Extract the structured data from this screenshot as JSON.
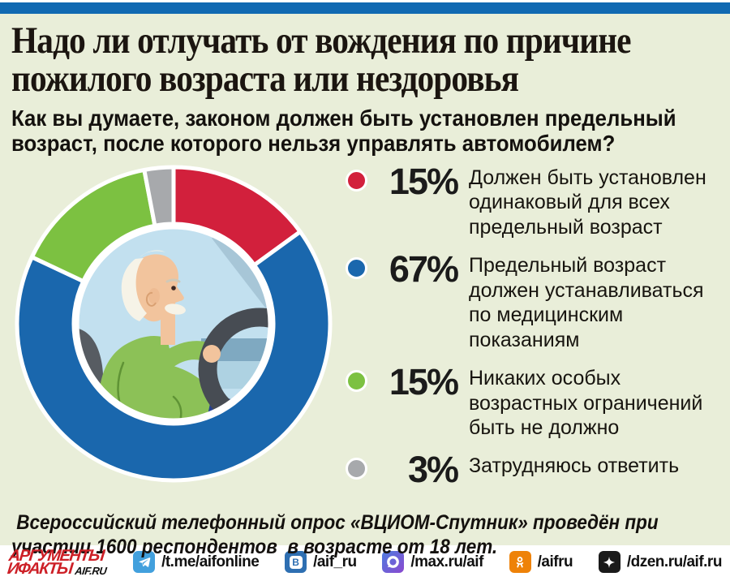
{
  "colors": {
    "top_bar": "#1069b2",
    "background": "#e9eed9",
    "footer_background": "#ffffff",
    "logo_red": "#cd2027",
    "percent_text": "#1b1b1b"
  },
  "header": {
    "title_line1": "Надо ли отлучать от вождения по причине",
    "title_line2": "пожилого возраста или нездоровья",
    "subtitle_line1": "Как вы думаете, законом должен быть установлен предельный",
    "subtitle_line2": "возраст, после которого нельзя управлять автомобилем?"
  },
  "chart_data": {
    "type": "pie",
    "subtype": "donut",
    "title": "Как вы думаете, законом должен быть установлен предельный возраст, после которого нельзя управлять автомобилем?",
    "categories": [
      "Должен быть установлен одинаковый для всех предельный возраст",
      "Предельный возраст должен устанавливаться по медицинским показаниям",
      "Никаких особых возрастных ограничений быть не должно",
      "Затрудняюсь ответить"
    ],
    "values": [
      15,
      67,
      15,
      3
    ],
    "unit": "%",
    "colors": [
      "#d2203c",
      "#1a67ad",
      "#7cc141",
      "#a7a9ac"
    ],
    "start_angle_deg": 0,
    "direction": "clockwise",
    "legend_position": "right",
    "center_content": "illustration of elderly man driving a car"
  },
  "legend": {
    "items": [
      {
        "percent_label": "15%",
        "label": "Должен быть установлен одинаковый для всех предельный возраст",
        "color": "#d2203c"
      },
      {
        "percent_label": "67%",
        "label": "Предельный возраст должен устанавливаться по медицинским показаниям",
        "color": "#1a67ad"
      },
      {
        "percent_label": "15%",
        "label": "Никаких особых возрастных ограничений быть не должно",
        "color": "#7cc141"
      },
      {
        "percent_label": "3%",
        "label": "Затрудняюсь ответить",
        "color": "#a7a9ac"
      }
    ]
  },
  "survey_note": {
    "line1": " Всероссийский телефонный опрос «ВЦИОМ-Спутник» проведён при",
    "line2": "участии 1600 респондентов  в возрасте от 18 лет."
  },
  "footer": {
    "logo": {
      "line1": "АРГУМЕНТЫ",
      "line2": "ИФАКТЫ",
      "suffix": "AIF.RU"
    },
    "links": [
      {
        "network": "telegram",
        "handle": "/t.me/aifonline",
        "color": "#42a0dd"
      },
      {
        "network": "vk",
        "handle": "/aif_ru",
        "color": "#2e6fb2",
        "icon_letter": "В"
      },
      {
        "network": "max",
        "handle": "/max.ru/aif",
        "color": "#8a48cf",
        "color2": "#4e7de0"
      },
      {
        "network": "odnoklassniki",
        "handle": "/aifru",
        "color": "#ee8208"
      },
      {
        "network": "dzen",
        "handle": "/dzen.ru/aif.ru",
        "color": "#1a1a1a"
      }
    ]
  }
}
